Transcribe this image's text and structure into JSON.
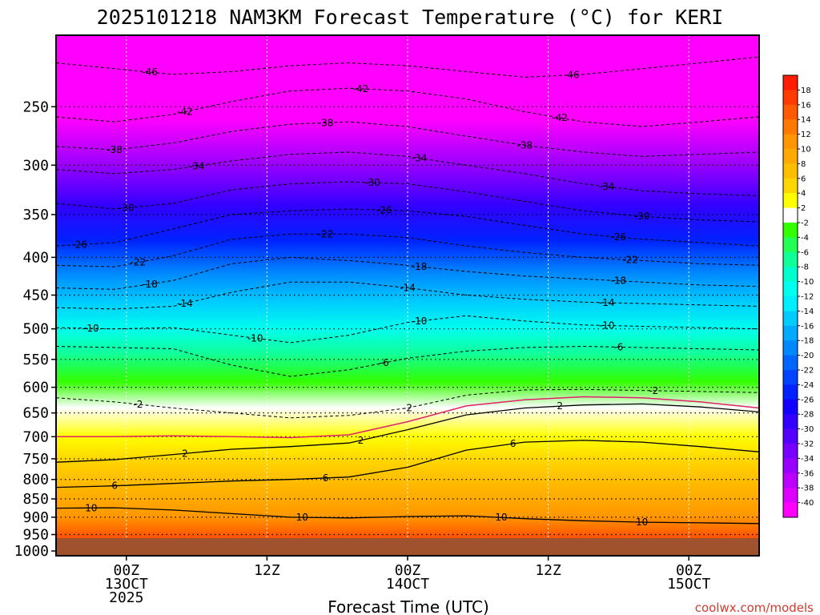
{
  "chart_data": {
    "type": "heatmap",
    "title": "2025101218 NAM3KM Forecast Temperature (°C) for KERI",
    "xlabel": "Forecast Time (UTC)",
    "credit": "coolwx.com/models",
    "x_ticks": [
      {
        "hour": 6,
        "lines": [
          "00Z",
          "13OCT",
          "2025"
        ]
      },
      {
        "hour": 18,
        "lines": [
          "12Z"
        ]
      },
      {
        "hour": 30,
        "lines": [
          "00Z",
          "14OCT"
        ]
      },
      {
        "hour": 42,
        "lines": [
          "12Z"
        ]
      },
      {
        "hour": 54,
        "lines": [
          "00Z",
          "15OCT"
        ]
      }
    ],
    "xlim": [
      0,
      60
    ],
    "y_ticks": [
      250,
      300,
      350,
      400,
      450,
      500,
      550,
      600,
      650,
      700,
      750,
      800,
      850,
      900,
      950,
      1000
    ],
    "ylim": [
      1015,
      200
    ],
    "log_pressure_axis": true,
    "grid": "dotted",
    "colorbar": {
      "placement": "right",
      "ticks": [
        18,
        16,
        14,
        12,
        10,
        8,
        6,
        4,
        2,
        -2,
        -4,
        -6,
        -8,
        -10,
        -12,
        -14,
        -16,
        -18,
        -20,
        -22,
        -24,
        -26,
        -28,
        -30,
        -32,
        -34,
        -36,
        -38,
        -40
      ],
      "bands": [
        {
          "min": 18,
          "max": 20,
          "color": "#ff1c00"
        },
        {
          "min": 16,
          "max": 18,
          "color": "#ff3c00"
        },
        {
          "min": 14,
          "max": 16,
          "color": "#ff5a00"
        },
        {
          "min": 12,
          "max": 14,
          "color": "#ff7800"
        },
        {
          "min": 10,
          "max": 12,
          "color": "#ff9600"
        },
        {
          "min": 8,
          "max": 10,
          "color": "#ffaa00"
        },
        {
          "min": 6,
          "max": 8,
          "color": "#ffbe00"
        },
        {
          "min": 4,
          "max": 6,
          "color": "#ffd700"
        },
        {
          "min": 2,
          "max": 4,
          "color": "#ffff00"
        },
        {
          "min": -2,
          "max": 2,
          "color": "#ffffff"
        },
        {
          "min": -4,
          "max": -2,
          "color": "#33ff00"
        },
        {
          "min": -6,
          "max": -4,
          "color": "#22ff55"
        },
        {
          "min": -8,
          "max": -6,
          "color": "#11ff99"
        },
        {
          "min": -10,
          "max": -8,
          "color": "#00ffcc"
        },
        {
          "min": -12,
          "max": -10,
          "color": "#00ffee"
        },
        {
          "min": -14,
          "max": -12,
          "color": "#00eeff"
        },
        {
          "min": -16,
          "max": -14,
          "color": "#00ccff"
        },
        {
          "min": -18,
          "max": -16,
          "color": "#00aaff"
        },
        {
          "min": -20,
          "max": -18,
          "color": "#0088ff"
        },
        {
          "min": -22,
          "max": -20,
          "color": "#0066ff"
        },
        {
          "min": -24,
          "max": -22,
          "color": "#0044ff"
        },
        {
          "min": -26,
          "max": -24,
          "color": "#0022ff"
        },
        {
          "min": -28,
          "max": -26,
          "color": "#1100ff"
        },
        {
          "min": -30,
          "max": -28,
          "color": "#3300ff"
        },
        {
          "min": -32,
          "max": -30,
          "color": "#5500ff"
        },
        {
          "min": -34,
          "max": -32,
          "color": "#7700ff"
        },
        {
          "min": -36,
          "max": -34,
          "color": "#9900ff"
        },
        {
          "min": -38,
          "max": -36,
          "color": "#bb00ff"
        },
        {
          "min": -40,
          "max": -38,
          "color": "#dd00ff"
        },
        {
          "min": -42,
          "max": -40,
          "color": "#ff00ff"
        }
      ]
    },
    "isotherms": [
      {
        "value": -46,
        "pressure": [
          218,
          222,
          226,
          224,
          220,
          218,
          220,
          224,
          228,
          226,
          222,
          218,
          214
        ],
        "labels": [
          {
            "hour": 8,
            "text": "-46"
          },
          {
            "hour": 44,
            "text": "-46"
          }
        ]
      },
      {
        "value": -42,
        "pressure": [
          258,
          262,
          256,
          246,
          238,
          236,
          238,
          244,
          254,
          262,
          266,
          262,
          258
        ],
        "labels": [
          {
            "hour": 11,
            "text": "-42"
          },
          {
            "hour": 26,
            "text": "-42"
          },
          {
            "hour": 43,
            "text": "-42"
          }
        ]
      },
      {
        "value": -38,
        "pressure": [
          283,
          286,
          280,
          270,
          264,
          262,
          266,
          274,
          282,
          288,
          292,
          290,
          288
        ],
        "labels": [
          {
            "hour": 5,
            "text": "-38"
          },
          {
            "hour": 23,
            "text": "-38"
          },
          {
            "hour": 40,
            "text": "-38"
          }
        ]
      },
      {
        "value": -34,
        "pressure": [
          304,
          308,
          304,
          296,
          290,
          288,
          292,
          300,
          308,
          318,
          325,
          328,
          330
        ],
        "labels": [
          {
            "hour": 12,
            "text": "-34"
          },
          {
            "hour": 31,
            "text": "-34"
          },
          {
            "hour": 47,
            "text": "-34"
          }
        ]
      },
      {
        "value": -30,
        "pressure": [
          338,
          344,
          338,
          324,
          318,
          316,
          318,
          326,
          336,
          346,
          352,
          356,
          358
        ],
        "labels": [
          {
            "hour": 6,
            "text": "-30"
          },
          {
            "hour": 27,
            "text": "-30"
          },
          {
            "hour": 50,
            "text": "-30"
          }
        ]
      },
      {
        "value": -26,
        "pressure": [
          386,
          382,
          366,
          350,
          346,
          344,
          346,
          352,
          362,
          372,
          378,
          382,
          386
        ],
        "labels": [
          {
            "hour": 2,
            "text": "-26"
          },
          {
            "hour": 28,
            "text": "-26"
          },
          {
            "hour": 48,
            "text": "-26"
          }
        ]
      },
      {
        "value": -22,
        "pressure": [
          410,
          412,
          398,
          378,
          372,
          372,
          376,
          386,
          394,
          400,
          404,
          408,
          410
        ],
        "labels": [
          {
            "hour": 7,
            "text": "-22"
          },
          {
            "hour": 23,
            "text": "-22"
          },
          {
            "hour": 49,
            "text": "-22"
          }
        ]
      },
      {
        "value": -18,
        "pressure": [
          440,
          442,
          430,
          408,
          400,
          404,
          410,
          418,
          424,
          428,
          432,
          436,
          438
        ],
        "labels": [
          {
            "hour": 8,
            "text": "-18"
          },
          {
            "hour": 31,
            "text": "-18"
          },
          {
            "hour": 48,
            "text": "-18"
          }
        ]
      },
      {
        "value": -14,
        "pressure": [
          468,
          470,
          466,
          446,
          432,
          432,
          440,
          450,
          456,
          460,
          462,
          464,
          466
        ],
        "labels": [
          {
            "hour": 11,
            "text": "-14"
          },
          {
            "hour": 30,
            "text": "-14"
          },
          {
            "hour": 47,
            "text": "-14"
          }
        ]
      },
      {
        "value": -10,
        "pressure": [
          498,
          500,
          498,
          510,
          522,
          510,
          490,
          480,
          488,
          494,
          496,
          498,
          500
        ],
        "labels": [
          {
            "hour": 3,
            "text": "-10"
          },
          {
            "hour": 17,
            "text": "-10"
          },
          {
            "hour": 31,
            "text": "-10"
          },
          {
            "hour": 47,
            "text": "-10"
          }
        ]
      },
      {
        "value": -6,
        "pressure": [
          528,
          530,
          532,
          560,
          580,
          568,
          548,
          536,
          530,
          528,
          530,
          532,
          534
        ],
        "labels": [
          {
            "hour": 28,
            "text": "-6"
          },
          {
            "hour": 48,
            "text": "-6"
          }
        ]
      },
      {
        "value": -2,
        "pressure": [
          620,
          628,
          640,
          650,
          660,
          655,
          640,
          615,
          605,
          604,
          606,
          608,
          610
        ],
        "labels": [
          {
            "hour": 7,
            "text": "-2"
          },
          {
            "hour": 30,
            "text": "-2"
          },
          {
            "hour": 51,
            "text": "-2"
          }
        ]
      },
      {
        "value": 2,
        "pressure": [
          758,
          752,
          740,
          728,
          722,
          714,
          685,
          654,
          640,
          634,
          632,
          638,
          648
        ],
        "labels": [
          {
            "hour": 11,
            "text": "2"
          },
          {
            "hour": 26,
            "text": "2"
          },
          {
            "hour": 43,
            "text": "2"
          }
        ]
      },
      {
        "value": 6,
        "pressure": [
          820,
          816,
          810,
          804,
          800,
          794,
          770,
          730,
          712,
          708,
          712,
          722,
          734
        ],
        "labels": [
          {
            "hour": 5,
            "text": "6"
          },
          {
            "hour": 23,
            "text": "6"
          },
          {
            "hour": 39,
            "text": "6"
          }
        ]
      },
      {
        "value": 10,
        "pressure": [
          875,
          874,
          880,
          890,
          900,
          902,
          898,
          896,
          904,
          910,
          914,
          916,
          918
        ],
        "labels": [
          {
            "hour": 3,
            "text": "10"
          },
          {
            "hour": 21,
            "text": "10"
          },
          {
            "hour": 38,
            "text": "10"
          },
          {
            "hour": 50,
            "text": "10"
          }
        ]
      }
    ],
    "freezing_line": {
      "value": 0,
      "color": "#e0206a",
      "pressure": [
        700,
        700,
        698,
        700,
        702,
        696,
        668,
        636,
        624,
        618,
        620,
        628,
        640
      ]
    },
    "ground_color": "#a0522d"
  }
}
